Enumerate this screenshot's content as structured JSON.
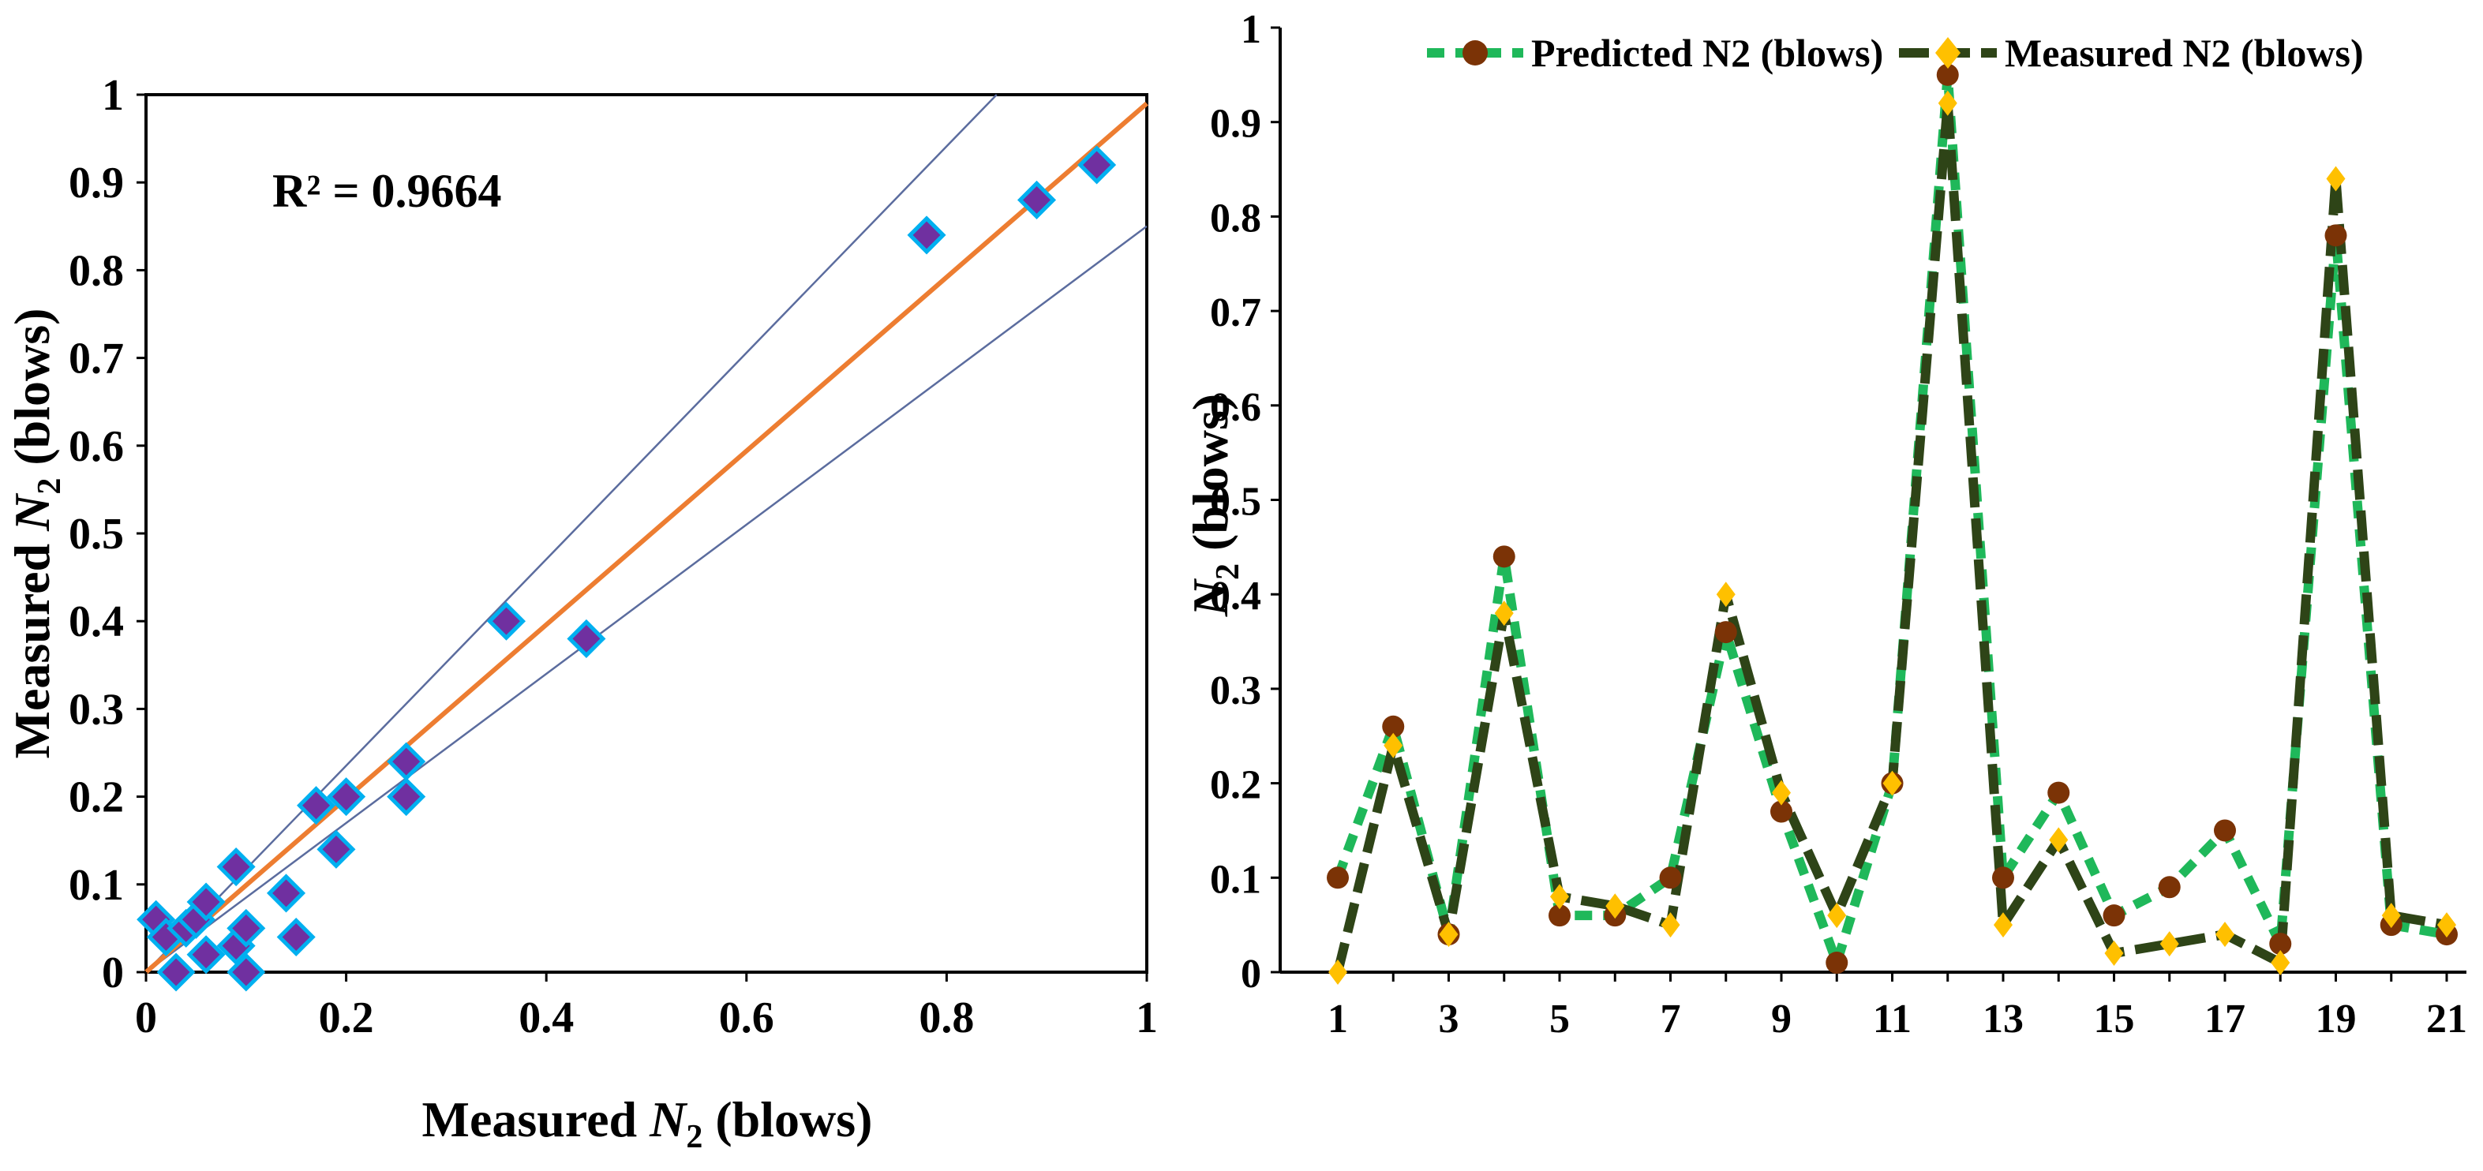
{
  "colors": {
    "fit": "#ed7d31",
    "bound": "#5b6c9e",
    "marker_fill": "#7030a0",
    "marker_edge": "#00b0f0",
    "predicted_line": "#1fb85a",
    "predicted_marker": "#7b3306",
    "measured_line": "#2e4417",
    "measured_marker": "#ffc000"
  },
  "chart_data": [
    {
      "type": "scatter",
      "xlabel_prefix": "Measured ",
      "xlabel_var": "N",
      "xlabel_sub": "2",
      "xlabel_suffix": " (blows)",
      "ylabel_prefix": "Measured ",
      "ylabel_var": "N",
      "ylabel_sub": "2",
      "ylabel_suffix": " (blows)",
      "annotation": "R² = 0.9664",
      "xlim": [
        0,
        1
      ],
      "ylim": [
        0,
        1
      ],
      "xticks": [
        "0",
        "0.2",
        "0.4",
        "0.6",
        "0.8",
        "1"
      ],
      "xtick_values": [
        0,
        0.2,
        0.4,
        0.6,
        0.8,
        1
      ],
      "yticks": [
        "0",
        "0.1",
        "0.2",
        "0.3",
        "0.4",
        "0.5",
        "0.6",
        "0.7",
        "0.8",
        "0.9",
        "1"
      ],
      "ytick_values": [
        0,
        0.1,
        0.2,
        0.3,
        0.4,
        0.5,
        0.6,
        0.7,
        0.8,
        0.9,
        1
      ],
      "points": [
        [
          0.01,
          0.06
        ],
        [
          0.02,
          0.04
        ],
        [
          0.03,
          0.0
        ],
        [
          0.04,
          0.05
        ],
        [
          0.05,
          0.06
        ],
        [
          0.06,
          0.08
        ],
        [
          0.06,
          0.02
        ],
        [
          0.09,
          0.12
        ],
        [
          0.09,
          0.03
        ],
        [
          0.1,
          0.05
        ],
        [
          0.1,
          0.0
        ],
        [
          0.14,
          0.09
        ],
        [
          0.15,
          0.04
        ],
        [
          0.17,
          0.19
        ],
        [
          0.19,
          0.14
        ],
        [
          0.2,
          0.2
        ],
        [
          0.26,
          0.24
        ],
        [
          0.26,
          0.2
        ],
        [
          0.36,
          0.4
        ],
        [
          0.44,
          0.38
        ],
        [
          0.78,
          0.84
        ],
        [
          0.89,
          0.88
        ],
        [
          0.95,
          0.92
        ]
      ],
      "fit_line": [
        [
          0.0,
          0.0
        ],
        [
          1.0,
          0.99
        ]
      ],
      "upper_bound": [
        [
          0.0,
          0.0
        ],
        [
          0.85,
          1.0
        ]
      ],
      "lower_bound": [
        [
          0.0,
          0.0
        ],
        [
          1.0,
          0.85
        ]
      ]
    },
    {
      "type": "line",
      "ylabel_var": "N",
      "ylabel_sub": "2",
      "ylabel_suffix": " (blows)",
      "ylim": [
        0,
        1
      ],
      "yticks": [
        "0",
        "0.1",
        "0.2",
        "0.3",
        "0.4",
        "0.5",
        "0.6",
        "0.7",
        "0.8",
        "0.9",
        "1"
      ],
      "ytick_values": [
        0,
        0.1,
        0.2,
        0.3,
        0.4,
        0.5,
        0.6,
        0.7,
        0.8,
        0.9,
        1
      ],
      "xlim": [
        1,
        21
      ],
      "xticks": [
        "1",
        "3",
        "5",
        "7",
        "9",
        "11",
        "13",
        "15",
        "17",
        "19",
        "21"
      ],
      "xtick_values": [
        1,
        3,
        5,
        7,
        9,
        11,
        13,
        15,
        17,
        19,
        21
      ],
      "x": [
        1,
        2,
        3,
        4,
        5,
        6,
        7,
        8,
        9,
        10,
        11,
        12,
        13,
        14,
        15,
        16,
        17,
        18,
        19,
        20,
        21
      ],
      "series": [
        {
          "name": "Predicted N2 (blows)",
          "values": [
            0.1,
            0.26,
            0.04,
            0.44,
            0.06,
            0.06,
            0.1,
            0.36,
            0.17,
            0.01,
            0.2,
            0.95,
            0.1,
            0.19,
            0.06,
            0.09,
            0.15,
            0.03,
            0.78,
            0.05,
            0.04
          ]
        },
        {
          "name": "Measured N2 (blows)",
          "values": [
            0.0,
            0.24,
            0.04,
            0.38,
            0.08,
            0.07,
            0.05,
            0.4,
            0.19,
            0.06,
            0.2,
            0.92,
            0.05,
            0.14,
            0.02,
            0.03,
            0.04,
            0.01,
            0.84,
            0.06,
            0.05
          ]
        }
      ]
    }
  ]
}
